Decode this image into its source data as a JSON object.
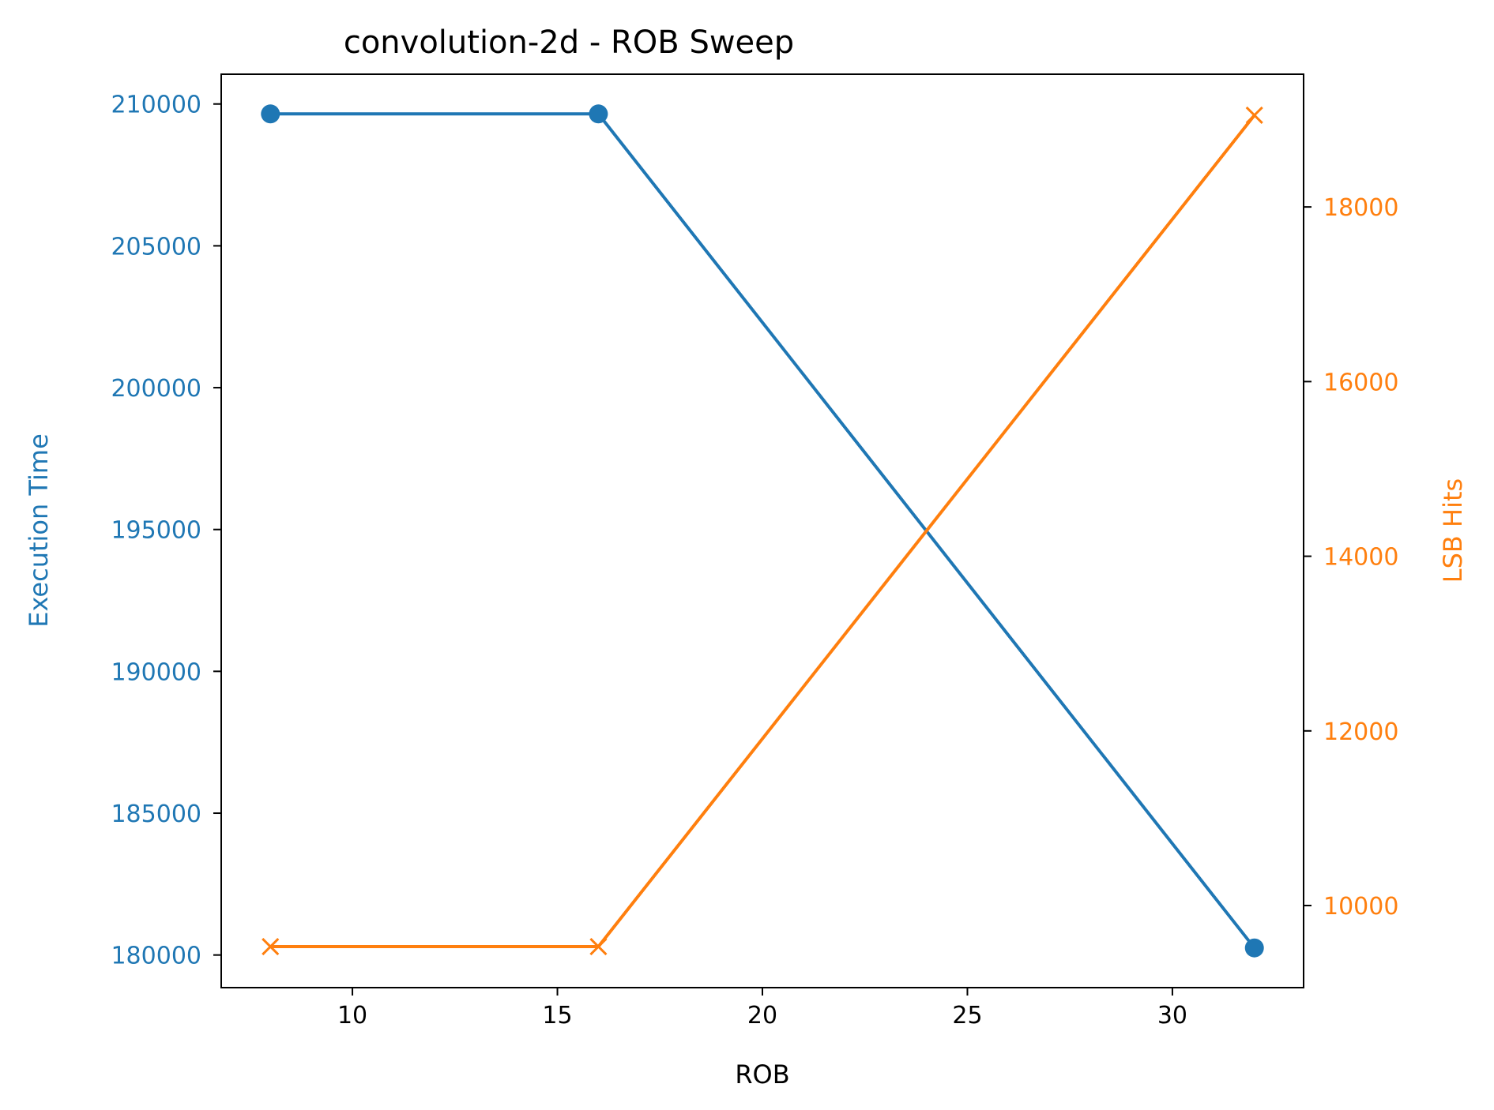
{
  "chart_data": {
    "type": "line",
    "title": "convolution-2d - ROB Sweep",
    "xlabel": "ROB",
    "x": [
      8,
      16,
      32
    ],
    "xlim": [
      6.8,
      33.2
    ],
    "xticks": [
      "10",
      "15",
      "20",
      "25",
      "30"
    ],
    "grid": false,
    "legend": "none",
    "series": [
      {
        "axis": "left",
        "label": "Execution Time",
        "color": "#1f77b4",
        "marker": "circle",
        "values": [
          209650,
          209650,
          180250
        ],
        "ylim": [
          178850,
          211050
        ],
        "yticks": [
          "180000",
          "185000",
          "190000",
          "195000",
          "200000",
          "205000",
          "210000"
        ]
      },
      {
        "axis": "right",
        "label": "LSB Hits",
        "color": "#ff7f0e",
        "marker": "x",
        "values": [
          9530,
          9530,
          19050
        ],
        "ylim": [
          9060,
          19520
        ],
        "yticks": [
          "10000",
          "12000",
          "14000",
          "16000",
          "18000"
        ]
      }
    ]
  }
}
